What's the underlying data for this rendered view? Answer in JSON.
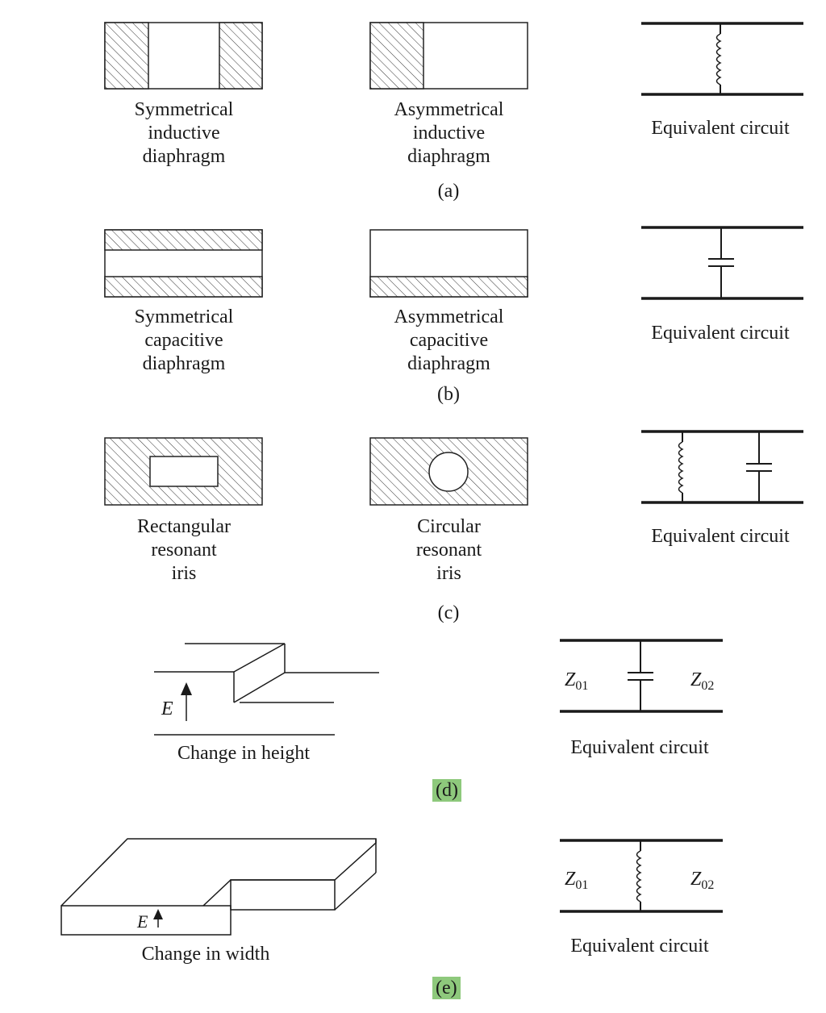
{
  "row_a": {
    "left": {
      "lines": [
        "Symmetrical",
        "inductive",
        "diaphragm"
      ]
    },
    "middle": {
      "lines": [
        "Asymmetrical",
        "inductive",
        "diaphragm"
      ]
    },
    "circuit_caption": "Equivalent circuit",
    "tag": "(a)"
  },
  "row_b": {
    "left": {
      "lines": [
        "Symmetrical",
        "capacitive",
        "diaphragm"
      ]
    },
    "middle": {
      "lines": [
        "Asymmetrical",
        "capacitive",
        "diaphragm"
      ]
    },
    "circuit_caption": "Equivalent circuit",
    "tag": "(b)"
  },
  "row_c": {
    "left": {
      "lines": [
        "Rectangular",
        "resonant",
        "iris"
      ]
    },
    "middle": {
      "lines": [
        "Circular",
        "resonant",
        "iris"
      ]
    },
    "circuit_caption": "Equivalent circuit",
    "tag": "(c)"
  },
  "row_d": {
    "field_label": "E",
    "caption": "Change in height",
    "z_left": {
      "main": "Z",
      "sub": "01"
    },
    "z_right": {
      "main": "Z",
      "sub": "02"
    },
    "circuit_caption": "Equivalent circuit",
    "tag": "(d)",
    "tag_highlight": "#8ec97c"
  },
  "row_e": {
    "field_label": "E",
    "caption": "Change in width",
    "z_left": {
      "main": "Z",
      "sub": "01"
    },
    "z_right": {
      "main": "Z",
      "sub": "02"
    },
    "circuit_caption": "Equivalent circuit",
    "tag": "(e)",
    "tag_highlight": "#8ec97c"
  }
}
